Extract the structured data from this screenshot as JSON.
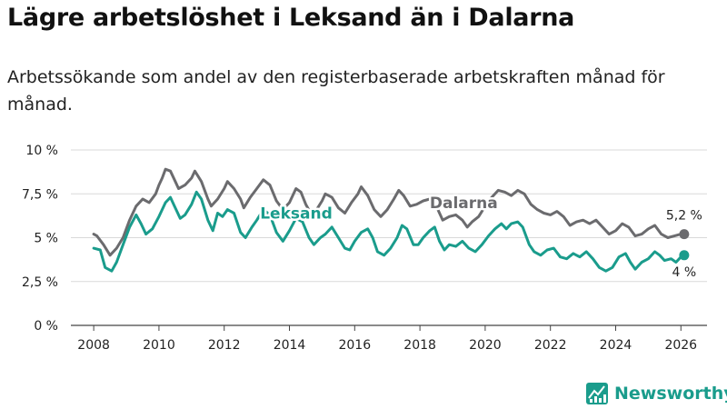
{
  "header": {
    "title": "Lägre arbetslöshet i Leksand än i Dalarna",
    "subtitle": "Arbetssökande som andel av den registerbaserade arbetskraften månad för månad."
  },
  "brand": {
    "name": "Newsworthy",
    "color": "#1a9c8c"
  },
  "chart_data": {
    "type": "line",
    "title": "Lägre arbetslöshet i Leksand än i Dalarna",
    "xlabel": "",
    "ylabel": "",
    "xlim": [
      2007.3,
      2026.8
    ],
    "ylim": [
      0,
      10
    ],
    "x_ticks": [
      "2008",
      "2010",
      "2012",
      "2014",
      "2016",
      "2018",
      "2020",
      "2022",
      "2024",
      "2026"
    ],
    "y_ticks": [
      "0 %",
      "2,5 %",
      "5 %",
      "7,5 %",
      "10 %"
    ],
    "y_tick_values": [
      0,
      2.5,
      5,
      7.5,
      10
    ],
    "grid": true,
    "series": [
      {
        "name": "Dalarna",
        "color": "#6b6b6e",
        "end_label": "5,2 %",
        "points": [
          [
            2008.0,
            5.2
          ],
          [
            2008.1,
            5.1
          ],
          [
            2008.3,
            4.6
          ],
          [
            2008.5,
            4.0
          ],
          [
            2008.7,
            4.4
          ],
          [
            2008.9,
            5.0
          ],
          [
            2009.1,
            6.0
          ],
          [
            2009.3,
            6.8
          ],
          [
            2009.5,
            7.2
          ],
          [
            2009.7,
            7.0
          ],
          [
            2009.9,
            7.5
          ],
          [
            2010.0,
            8.0
          ],
          [
            2010.1,
            8.4
          ],
          [
            2010.2,
            8.9
          ],
          [
            2010.35,
            8.8
          ],
          [
            2010.5,
            8.2
          ],
          [
            2010.6,
            7.8
          ],
          [
            2010.8,
            8.0
          ],
          [
            2011.0,
            8.4
          ],
          [
            2011.1,
            8.8
          ],
          [
            2011.3,
            8.2
          ],
          [
            2011.5,
            7.2
          ],
          [
            2011.6,
            6.8
          ],
          [
            2011.8,
            7.2
          ],
          [
            2012.0,
            7.8
          ],
          [
            2012.1,
            8.2
          ],
          [
            2012.3,
            7.8
          ],
          [
            2012.5,
            7.2
          ],
          [
            2012.6,
            6.7
          ],
          [
            2012.8,
            7.3
          ],
          [
            2013.0,
            7.8
          ],
          [
            2013.2,
            8.3
          ],
          [
            2013.4,
            8.0
          ],
          [
            2013.6,
            7.1
          ],
          [
            2013.8,
            6.6
          ],
          [
            2014.0,
            7.0
          ],
          [
            2014.2,
            7.8
          ],
          [
            2014.35,
            7.6
          ],
          [
            2014.5,
            6.9
          ],
          [
            2014.65,
            6.4
          ],
          [
            2014.8,
            6.5
          ],
          [
            2015.0,
            7.1
          ],
          [
            2015.1,
            7.5
          ],
          [
            2015.3,
            7.3
          ],
          [
            2015.5,
            6.7
          ],
          [
            2015.7,
            6.4
          ],
          [
            2015.9,
            7.0
          ],
          [
            2016.1,
            7.5
          ],
          [
            2016.2,
            7.9
          ],
          [
            2016.4,
            7.4
          ],
          [
            2016.6,
            6.6
          ],
          [
            2016.8,
            6.2
          ],
          [
            2017.0,
            6.6
          ],
          [
            2017.2,
            7.2
          ],
          [
            2017.35,
            7.7
          ],
          [
            2017.5,
            7.4
          ],
          [
            2017.7,
            6.8
          ],
          [
            2017.9,
            6.9
          ],
          [
            2018.1,
            7.1
          ],
          [
            2018.3,
            7.2
          ],
          [
            2018.5,
            6.8
          ],
          [
            2018.7,
            6.0
          ],
          [
            2018.9,
            6.2
          ],
          [
            2019.1,
            6.3
          ],
          [
            2019.3,
            6.0
          ],
          [
            2019.45,
            5.6
          ],
          [
            2019.6,
            5.9
          ],
          [
            2019.8,
            6.2
          ],
          [
            2020.0,
            6.8
          ],
          [
            2020.2,
            7.3
          ],
          [
            2020.4,
            7.7
          ],
          [
            2020.6,
            7.6
          ],
          [
            2020.8,
            7.4
          ],
          [
            2021.0,
            7.7
          ],
          [
            2021.2,
            7.5
          ],
          [
            2021.4,
            6.9
          ],
          [
            2021.6,
            6.6
          ],
          [
            2021.8,
            6.4
          ],
          [
            2022.0,
            6.3
          ],
          [
            2022.2,
            6.5
          ],
          [
            2022.4,
            6.2
          ],
          [
            2022.6,
            5.7
          ],
          [
            2022.8,
            5.9
          ],
          [
            2023.0,
            6.0
          ],
          [
            2023.2,
            5.8
          ],
          [
            2023.4,
            6.0
          ],
          [
            2023.6,
            5.6
          ],
          [
            2023.8,
            5.2
          ],
          [
            2024.0,
            5.4
          ],
          [
            2024.2,
            5.8
          ],
          [
            2024.4,
            5.6
          ],
          [
            2024.6,
            5.1
          ],
          [
            2024.8,
            5.2
          ],
          [
            2025.0,
            5.5
          ],
          [
            2025.2,
            5.7
          ],
          [
            2025.4,
            5.2
          ],
          [
            2025.6,
            5.0
          ],
          [
            2025.8,
            5.1
          ],
          [
            2026.0,
            5.2
          ],
          [
            2026.1,
            5.2
          ]
        ]
      },
      {
        "name": "Leksand",
        "color": "#1a9c8c",
        "end_label": "4 %",
        "points": [
          [
            2008.0,
            4.4
          ],
          [
            2008.2,
            4.3
          ],
          [
            2008.35,
            3.3
          ],
          [
            2008.55,
            3.1
          ],
          [
            2008.7,
            3.6
          ],
          [
            2008.9,
            4.6
          ],
          [
            2009.1,
            5.6
          ],
          [
            2009.3,
            6.3
          ],
          [
            2009.45,
            5.8
          ],
          [
            2009.6,
            5.2
          ],
          [
            2009.8,
            5.5
          ],
          [
            2010.0,
            6.2
          ],
          [
            2010.2,
            7.0
          ],
          [
            2010.35,
            7.3
          ],
          [
            2010.5,
            6.7
          ],
          [
            2010.65,
            6.1
          ],
          [
            2010.8,
            6.3
          ],
          [
            2011.0,
            6.9
          ],
          [
            2011.15,
            7.6
          ],
          [
            2011.3,
            7.2
          ],
          [
            2011.5,
            6.0
          ],
          [
            2011.65,
            5.4
          ],
          [
            2011.8,
            6.4
          ],
          [
            2011.95,
            6.2
          ],
          [
            2012.1,
            6.6
          ],
          [
            2012.3,
            6.4
          ],
          [
            2012.5,
            5.3
          ],
          [
            2012.65,
            5.0
          ],
          [
            2012.85,
            5.6
          ],
          [
            2013.0,
            6.0
          ],
          [
            2013.2,
            6.6
          ],
          [
            2013.4,
            6.3
          ],
          [
            2013.6,
            5.3
          ],
          [
            2013.8,
            4.8
          ],
          [
            2014.0,
            5.4
          ],
          [
            2014.2,
            6.1
          ],
          [
            2014.4,
            5.9
          ],
          [
            2014.6,
            5.0
          ],
          [
            2014.75,
            4.6
          ],
          [
            2014.95,
            5.0
          ],
          [
            2015.1,
            5.2
          ],
          [
            2015.3,
            5.6
          ],
          [
            2015.5,
            5.0
          ],
          [
            2015.7,
            4.4
          ],
          [
            2015.85,
            4.3
          ],
          [
            2016.0,
            4.8
          ],
          [
            2016.2,
            5.3
          ],
          [
            2016.4,
            5.5
          ],
          [
            2016.55,
            5.0
          ],
          [
            2016.7,
            4.2
          ],
          [
            2016.9,
            4.0
          ],
          [
            2017.1,
            4.4
          ],
          [
            2017.3,
            5.0
          ],
          [
            2017.45,
            5.7
          ],
          [
            2017.6,
            5.5
          ],
          [
            2017.8,
            4.6
          ],
          [
            2017.95,
            4.6
          ],
          [
            2018.1,
            5.0
          ],
          [
            2018.3,
            5.4
          ],
          [
            2018.45,
            5.6
          ],
          [
            2018.6,
            4.8
          ],
          [
            2018.75,
            4.3
          ],
          [
            2018.9,
            4.6
          ],
          [
            2019.1,
            4.5
          ],
          [
            2019.3,
            4.8
          ],
          [
            2019.5,
            4.4
          ],
          [
            2019.7,
            4.2
          ],
          [
            2019.9,
            4.6
          ],
          [
            2020.1,
            5.1
          ],
          [
            2020.3,
            5.5
          ],
          [
            2020.5,
            5.8
          ],
          [
            2020.65,
            5.5
          ],
          [
            2020.8,
            5.8
          ],
          [
            2021.0,
            5.9
          ],
          [
            2021.15,
            5.6
          ],
          [
            2021.35,
            4.6
          ],
          [
            2021.5,
            4.2
          ],
          [
            2021.7,
            4.0
          ],
          [
            2021.9,
            4.3
          ],
          [
            2022.1,
            4.4
          ],
          [
            2022.3,
            3.9
          ],
          [
            2022.5,
            3.8
          ],
          [
            2022.7,
            4.1
          ],
          [
            2022.9,
            3.9
          ],
          [
            2023.1,
            4.2
          ],
          [
            2023.3,
            3.8
          ],
          [
            2023.5,
            3.3
          ],
          [
            2023.7,
            3.1
          ],
          [
            2023.9,
            3.3
          ],
          [
            2024.1,
            3.9
          ],
          [
            2024.3,
            4.1
          ],
          [
            2024.45,
            3.6
          ],
          [
            2024.6,
            3.2
          ],
          [
            2024.8,
            3.6
          ],
          [
            2025.0,
            3.8
          ],
          [
            2025.2,
            4.2
          ],
          [
            2025.35,
            4.0
          ],
          [
            2025.5,
            3.7
          ],
          [
            2025.7,
            3.8
          ],
          [
            2025.85,
            3.6
          ],
          [
            2026.0,
            3.9
          ],
          [
            2026.1,
            4.0
          ]
        ]
      }
    ]
  }
}
